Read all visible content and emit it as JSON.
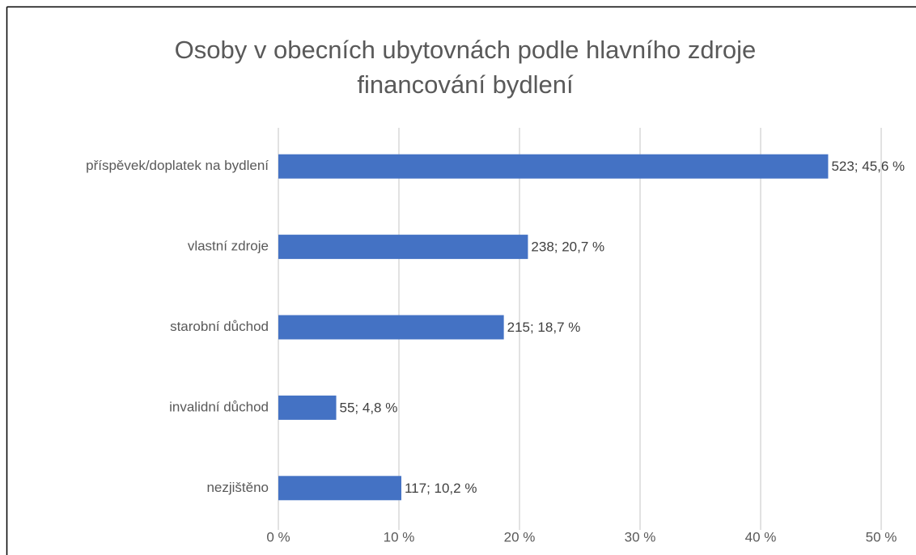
{
  "chart_data": {
    "type": "bar",
    "orientation": "horizontal",
    "title": "Osoby v obecních ubytovnách podle hlavního zdroje financování bydlení",
    "categories": [
      "příspěvek/doplatek na bydlení",
      "vlastní zdroje",
      "starobní důchod",
      "invalidní důchod",
      "nezjištěno"
    ],
    "values": [
      45.6,
      20.7,
      18.7,
      4.8,
      10.2
    ],
    "value_labels": [
      "523; 45,6 %",
      "238; 20,7 %",
      "215; 18,7 %",
      "55; 4,8 %",
      "117; 10,2 %"
    ],
    "color": "#4472c4",
    "xlim": [
      0,
      50
    ],
    "xticks": [
      {
        "value": 0,
        "label": "0 %"
      },
      {
        "value": 10,
        "label": "10 %"
      },
      {
        "value": 20,
        "label": "20 %"
      },
      {
        "value": 30,
        "label": "30 %"
      },
      {
        "value": 40,
        "label": "40 %"
      },
      {
        "value": 50,
        "label": "50 %"
      }
    ],
    "grid": true
  }
}
